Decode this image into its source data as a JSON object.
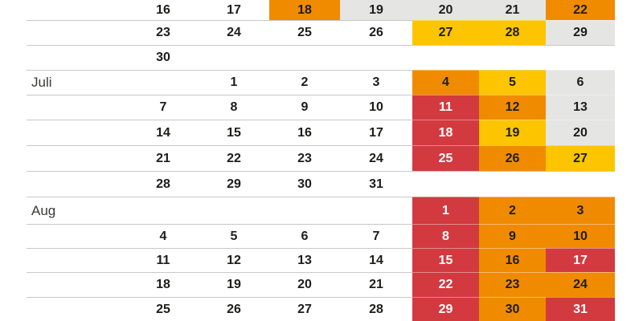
{
  "page": {
    "background": "#ffffff"
  },
  "calendar": {
    "month_labels_visible": [
      "Juli",
      "Aug"
    ],
    "level_colors": {
      "gray": "#e5e5e4",
      "yellow": "#fdc500",
      "orange": "#f08b00",
      "red": "#d23a40"
    },
    "text_colors": {
      "dark": "#1d1d1b",
      "on_red": "#ffffff",
      "month_label": "#3a3a38",
      "divider": "#c9c9c9"
    },
    "rows": [
      {
        "label": "",
        "cells": [
          {
            "d": "16",
            "c": "none"
          },
          {
            "d": "17",
            "c": "none"
          },
          {
            "d": "18",
            "c": "orange"
          },
          {
            "d": "19",
            "c": "gray"
          },
          {
            "d": "20",
            "c": "gray"
          },
          {
            "d": "21",
            "c": "gray"
          },
          {
            "d": "22",
            "c": "orange"
          }
        ]
      },
      {
        "label": "",
        "cells": [
          {
            "d": "23",
            "c": "none"
          },
          {
            "d": "24",
            "c": "none"
          },
          {
            "d": "25",
            "c": "none"
          },
          {
            "d": "26",
            "c": "none"
          },
          {
            "d": "27",
            "c": "yellow"
          },
          {
            "d": "28",
            "c": "yellow"
          },
          {
            "d": "29",
            "c": "gray"
          }
        ]
      },
      {
        "label": "",
        "cells": [
          {
            "d": "30",
            "c": "none"
          },
          {
            "d": "",
            "c": "none"
          },
          {
            "d": "",
            "c": "none"
          },
          {
            "d": "",
            "c": "none"
          },
          {
            "d": "",
            "c": "none"
          },
          {
            "d": "",
            "c": "none"
          },
          {
            "d": "",
            "c": "none"
          }
        ]
      },
      {
        "label": "Juli",
        "cells": [
          {
            "d": "",
            "c": "none"
          },
          {
            "d": "1",
            "c": "none"
          },
          {
            "d": "2",
            "c": "none"
          },
          {
            "d": "3",
            "c": "none"
          },
          {
            "d": "4",
            "c": "orange"
          },
          {
            "d": "5",
            "c": "yellow"
          },
          {
            "d": "6",
            "c": "gray"
          }
        ]
      },
      {
        "label": "",
        "cells": [
          {
            "d": "7",
            "c": "none"
          },
          {
            "d": "8",
            "c": "none"
          },
          {
            "d": "9",
            "c": "none"
          },
          {
            "d": "10",
            "c": "none"
          },
          {
            "d": "11",
            "c": "red"
          },
          {
            "d": "12",
            "c": "orange"
          },
          {
            "d": "13",
            "c": "gray"
          }
        ]
      },
      {
        "label": "",
        "cells": [
          {
            "d": "14",
            "c": "none"
          },
          {
            "d": "15",
            "c": "none"
          },
          {
            "d": "16",
            "c": "none"
          },
          {
            "d": "17",
            "c": "none"
          },
          {
            "d": "18",
            "c": "red"
          },
          {
            "d": "19",
            "c": "yellow"
          },
          {
            "d": "20",
            "c": "gray"
          }
        ]
      },
      {
        "label": "",
        "cells": [
          {
            "d": "21",
            "c": "none"
          },
          {
            "d": "22",
            "c": "none"
          },
          {
            "d": "23",
            "c": "none"
          },
          {
            "d": "24",
            "c": "none"
          },
          {
            "d": "25",
            "c": "red"
          },
          {
            "d": "26",
            "c": "orange"
          },
          {
            "d": "27",
            "c": "yellow"
          }
        ]
      },
      {
        "label": "",
        "cells": [
          {
            "d": "28",
            "c": "none"
          },
          {
            "d": "29",
            "c": "none"
          },
          {
            "d": "30",
            "c": "none"
          },
          {
            "d": "31",
            "c": "none"
          },
          {
            "d": "",
            "c": "none"
          },
          {
            "d": "",
            "c": "none"
          },
          {
            "d": "",
            "c": "none"
          }
        ]
      },
      {
        "label": "Aug",
        "cells": [
          {
            "d": "",
            "c": "none"
          },
          {
            "d": "",
            "c": "none"
          },
          {
            "d": "",
            "c": "none"
          },
          {
            "d": "",
            "c": "none"
          },
          {
            "d": "1",
            "c": "red"
          },
          {
            "d": "2",
            "c": "orange"
          },
          {
            "d": "3",
            "c": "orange"
          }
        ]
      },
      {
        "label": "",
        "cells": [
          {
            "d": "4",
            "c": "none"
          },
          {
            "d": "5",
            "c": "none"
          },
          {
            "d": "6",
            "c": "none"
          },
          {
            "d": "7",
            "c": "none"
          },
          {
            "d": "8",
            "c": "red"
          },
          {
            "d": "9",
            "c": "orange"
          },
          {
            "d": "10",
            "c": "orange"
          }
        ]
      },
      {
        "label": "",
        "cells": [
          {
            "d": "11",
            "c": "none"
          },
          {
            "d": "12",
            "c": "none"
          },
          {
            "d": "13",
            "c": "none"
          },
          {
            "d": "14",
            "c": "none"
          },
          {
            "d": "15",
            "c": "red"
          },
          {
            "d": "16",
            "c": "orange"
          },
          {
            "d": "17",
            "c": "red"
          }
        ]
      },
      {
        "label": "",
        "cells": [
          {
            "d": "18",
            "c": "none"
          },
          {
            "d": "19",
            "c": "none"
          },
          {
            "d": "20",
            "c": "none"
          },
          {
            "d": "21",
            "c": "none"
          },
          {
            "d": "22",
            "c": "red"
          },
          {
            "d": "23",
            "c": "orange"
          },
          {
            "d": "24",
            "c": "orange"
          }
        ]
      },
      {
        "label": "",
        "cells": [
          {
            "d": "25",
            "c": "none"
          },
          {
            "d": "26",
            "c": "none"
          },
          {
            "d": "27",
            "c": "none"
          },
          {
            "d": "28",
            "c": "none"
          },
          {
            "d": "29",
            "c": "red"
          },
          {
            "d": "30",
            "c": "orange"
          },
          {
            "d": "31",
            "c": "red"
          }
        ]
      }
    ]
  },
  "chart_data": {
    "type": "heatmap",
    "title": "",
    "description_visible_text_only": "Calendar heat-map of dates with traffic-load color levels",
    "months": [
      {
        "label": "",
        "note": "partial top month (June), label cut off",
        "colored_dates": {
          "18": "orange",
          "19": "gray",
          "20": "gray",
          "21": "gray",
          "22": "orange",
          "27": "yellow",
          "28": "yellow",
          "29": "gray"
        },
        "plain_dates": [
          16,
          17,
          23,
          24,
          25,
          26,
          30
        ]
      },
      {
        "label": "Juli",
        "colored_dates": {
          "4": "orange",
          "5": "yellow",
          "6": "gray",
          "11": "red",
          "12": "orange",
          "13": "gray",
          "18": "red",
          "19": "yellow",
          "20": "gray",
          "25": "red",
          "26": "orange",
          "27": "yellow"
        },
        "plain_dates": [
          1,
          2,
          3,
          7,
          8,
          9,
          10,
          14,
          15,
          16,
          17,
          21,
          22,
          23,
          24,
          28,
          29,
          30,
          31
        ]
      },
      {
        "label": "Aug",
        "colored_dates": {
          "1": "red",
          "2": "orange",
          "3": "orange",
          "8": "red",
          "9": "orange",
          "10": "orange",
          "15": "red",
          "16": "orange",
          "17": "red",
          "22": "red",
          "23": "orange",
          "24": "orange",
          "29": "red",
          "30": "orange",
          "31": "red"
        },
        "plain_dates": [
          4,
          5,
          6,
          7,
          11,
          12,
          13,
          14,
          18,
          19,
          20,
          21,
          25,
          26,
          27,
          28
        ]
      }
    ],
    "levels": [
      "gray",
      "yellow",
      "orange",
      "red"
    ],
    "layout_hints": {
      "weekday_columns": 7,
      "week_starts": "Monday",
      "grid": "horizontal dividers only",
      "legend": "not visible in crop"
    }
  }
}
